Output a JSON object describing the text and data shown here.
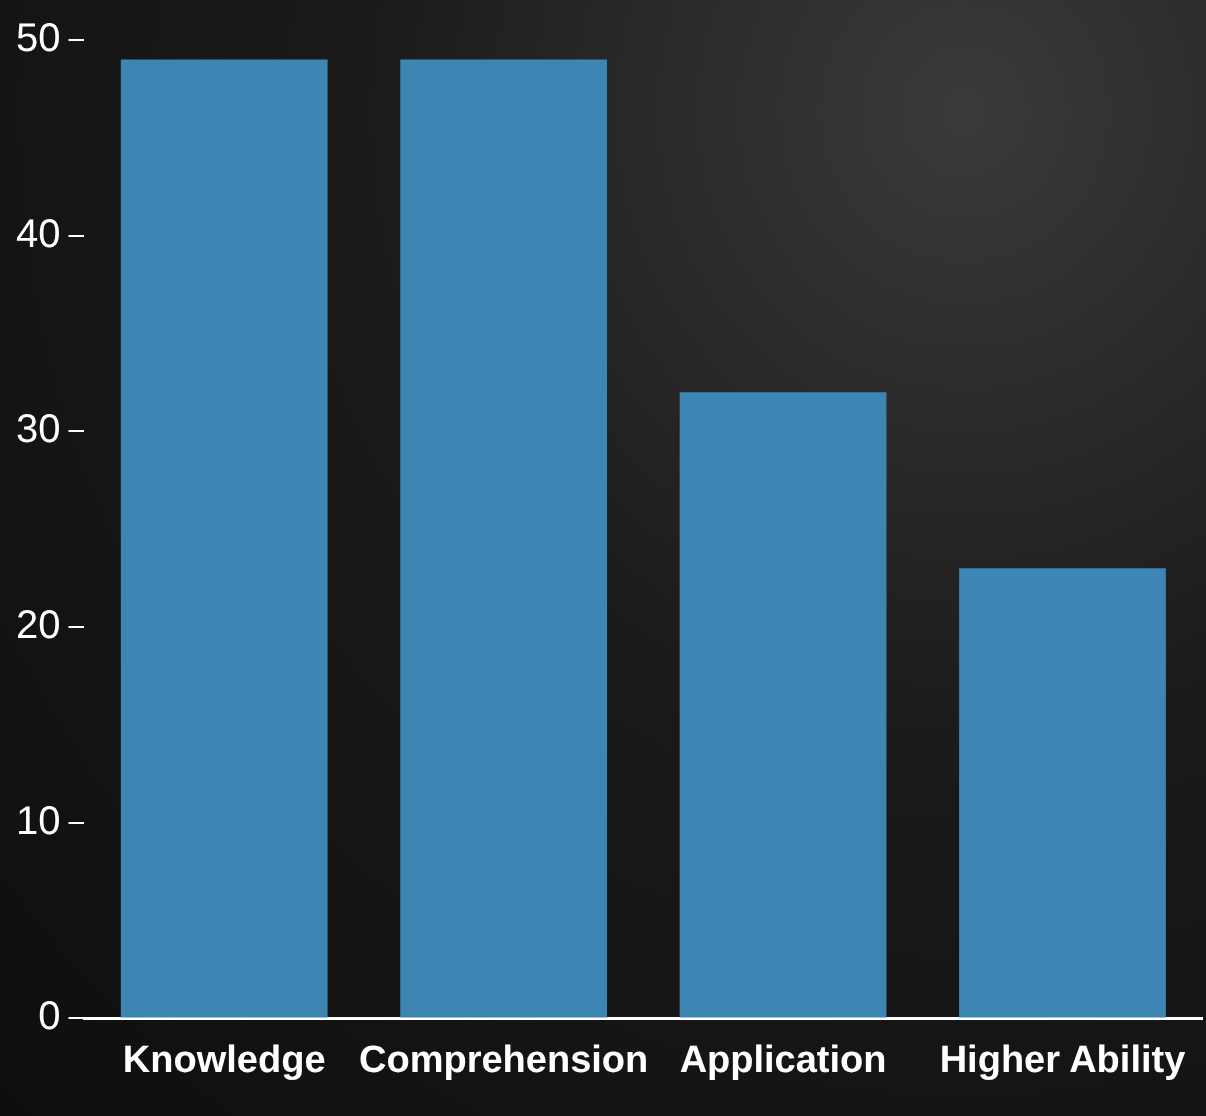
{
  "chart_data": {
    "type": "bar",
    "categories": [
      "Knowledge",
      "Comprehension",
      "Application",
      "Higher Ability"
    ],
    "values": [
      49,
      49,
      32,
      23
    ],
    "color": "#3d85b3",
    "ylim": [
      0,
      50
    ],
    "yticks": [
      0,
      10,
      20,
      30,
      40,
      50
    ],
    "grid": false,
    "legend": false
  }
}
